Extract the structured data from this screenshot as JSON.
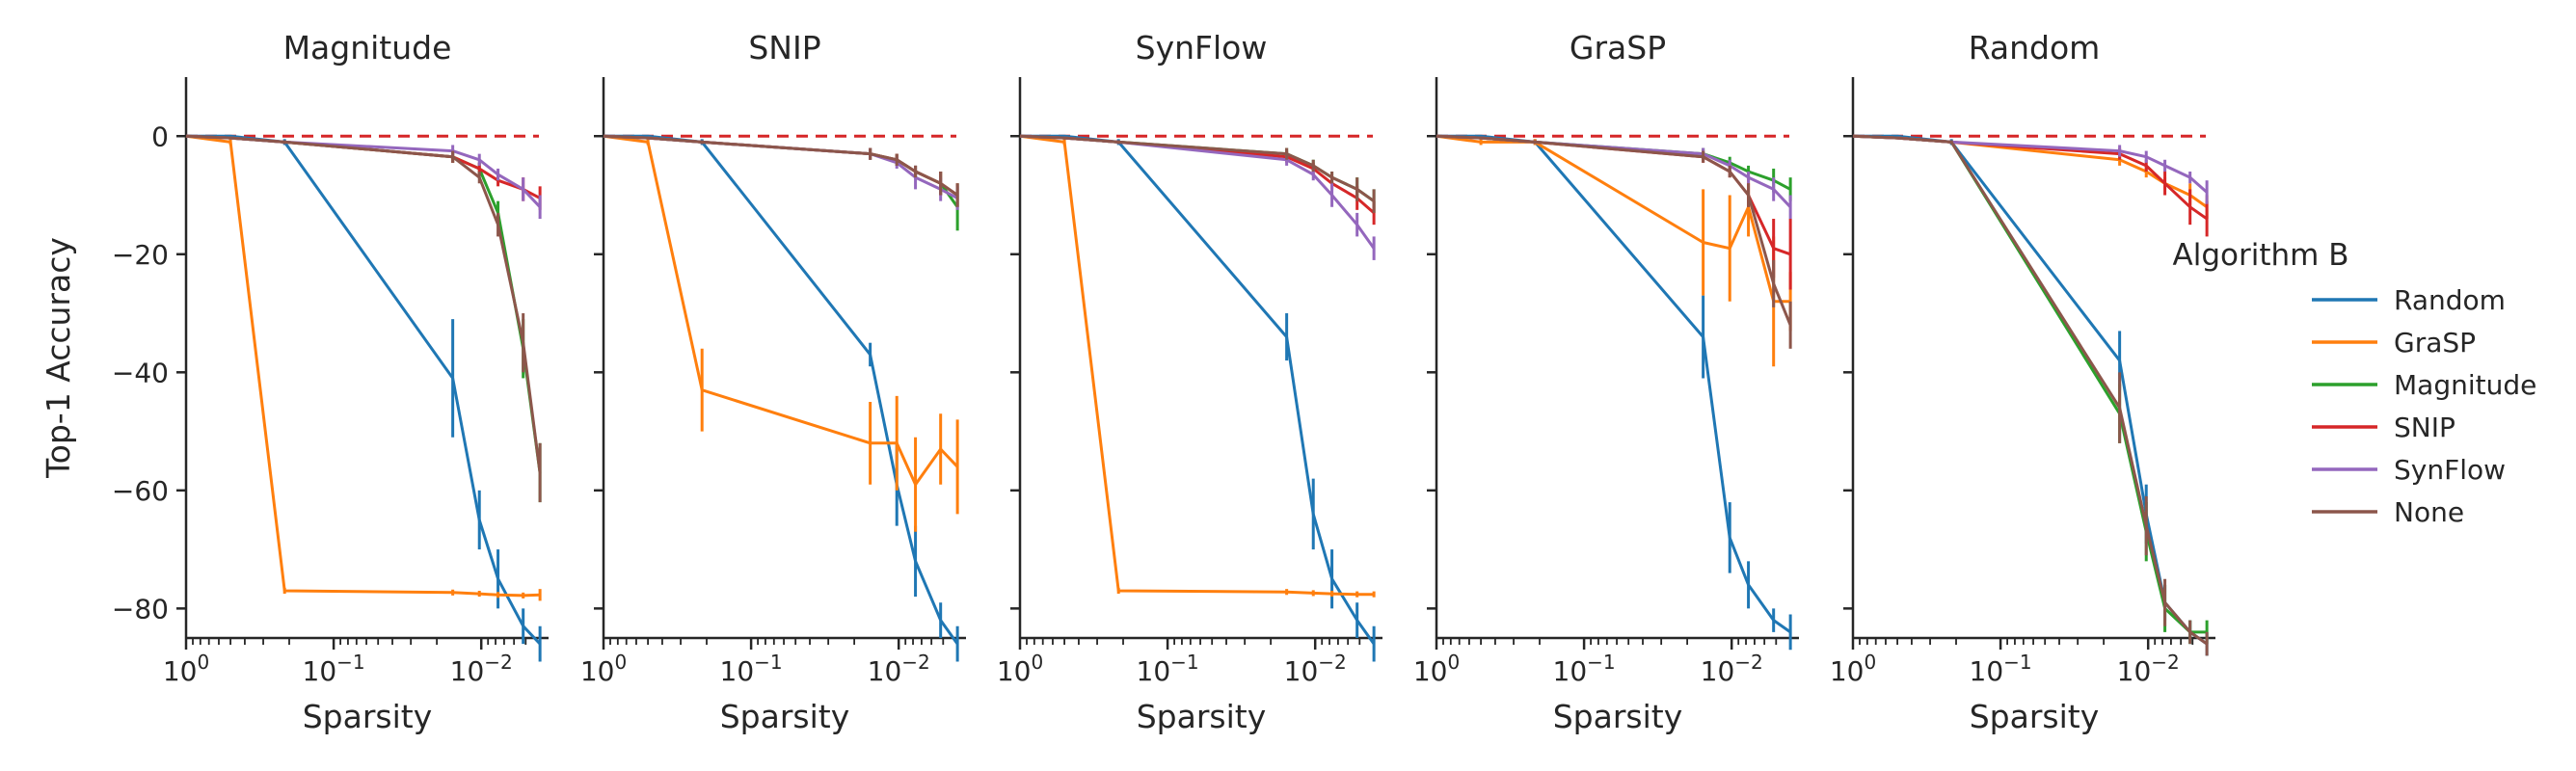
{
  "chart_data": {
    "type": "line",
    "ylabel": "Top-1 Accuracy",
    "xlabel": "Sparsity",
    "x_scale": "log-reversed",
    "xlim": [
      1,
      0.0035
    ],
    "ylim": [
      -85,
      10
    ],
    "yticks": [
      0,
      -20,
      -40,
      -60,
      -80
    ],
    "ytick_labels": [
      "0",
      "−20",
      "−40",
      "−60",
      "−80"
    ],
    "xticks": [
      1,
      0.1,
      0.01
    ],
    "xtick_labels": [
      "10",
      "10",
      "10"
    ],
    "xtick_exponents": [
      "0",
      "−1",
      "−2"
    ],
    "baseline": {
      "y": 0,
      "color": "#d62728",
      "style": "dashed"
    },
    "x": [
      1.0,
      0.5,
      0.215,
      0.0156,
      0.0103,
      0.0077,
      0.0052,
      0.004
    ],
    "legend": {
      "title": "Algorithm B",
      "placement": "center-right",
      "entries": [
        {
          "name": "Random",
          "color": "#1f77b4"
        },
        {
          "name": "GraSP",
          "color": "#ff7f0e"
        },
        {
          "name": "Magnitude",
          "color": "#2ca02c"
        },
        {
          "name": "SNIP",
          "color": "#d62728"
        },
        {
          "name": "SynFlow",
          "color": "#9467bd"
        },
        {
          "name": "None",
          "color": "#8c564b"
        }
      ]
    },
    "panels": [
      {
        "title": "Magnitude",
        "series": [
          {
            "name": "Random",
            "values": [
              0,
              0,
              -1,
              -41,
              -65,
              -75,
              -83,
              -86
            ],
            "errors": [
              0,
              0,
              0.5,
              10,
              5,
              5,
              3,
              3
            ]
          },
          {
            "name": "GraSP",
            "values": [
              0,
              -1,
              -77,
              -77.3,
              -77.5,
              -77.7,
              -77.8,
              -77.7
            ],
            "errors": [
              0,
              0.5,
              0.5,
              0.5,
              0.5,
              0.5,
              0.5,
              1
            ]
          },
          {
            "name": "Magnitude",
            "values": [
              0,
              -0.3,
              -1,
              -3.5,
              -5.5,
              -13,
              -36,
              -57
            ],
            "errors": [
              0,
              0.2,
              0.3,
              1,
              1,
              2,
              5,
              5
            ]
          },
          {
            "name": "SNIP",
            "values": [
              0,
              -0.3,
              -1,
              -3.5,
              -5.5,
              -7.5,
              -9,
              -10.5
            ],
            "errors": [
              0,
              0.2,
              0.3,
              1,
              1,
              1,
              2,
              2
            ]
          },
          {
            "name": "SynFlow",
            "values": [
              0,
              -0.3,
              -1,
              -2.5,
              -4,
              -6.5,
              -9,
              -12
            ],
            "errors": [
              0,
              0.2,
              0.3,
              1,
              1,
              1,
              2,
              2
            ]
          },
          {
            "name": "None",
            "values": [
              0,
              -0.3,
              -1,
              -3.5,
              -7,
              -15,
              -35,
              -57
            ],
            "errors": [
              0,
              0.2,
              0.3,
              1,
              1,
              2,
              5,
              5
            ]
          }
        ]
      },
      {
        "title": "SNIP",
        "series": [
          {
            "name": "Random",
            "values": [
              0,
              0,
              -1,
              -37,
              -59,
              -72,
              -82,
              -86
            ],
            "errors": [
              0,
              0,
              0.5,
              2,
              7,
              6,
              3,
              3
            ]
          },
          {
            "name": "GraSP",
            "values": [
              0,
              -1,
              -43,
              -52,
              -52,
              -59,
              -53,
              -56
            ],
            "errors": [
              0,
              0.5,
              7,
              7,
              8,
              8,
              6,
              8
            ]
          },
          {
            "name": "Magnitude",
            "values": [
              0,
              -0.3,
              -1,
              -3,
              -4,
              -6,
              -8,
              -12
            ],
            "errors": [
              0,
              0.2,
              0.3,
              1,
              1,
              1,
              2,
              4
            ]
          },
          {
            "name": "SNIP",
            "values": [
              0,
              -0.3,
              -1,
              -3,
              -4,
              -6,
              -8,
              -10
            ],
            "errors": [
              0,
              0.2,
              0.3,
              1,
              1,
              1,
              2,
              2
            ]
          },
          {
            "name": "SynFlow",
            "values": [
              0,
              -0.3,
              -1,
              -3,
              -4.5,
              -7,
              -9,
              -10.5
            ],
            "errors": [
              0,
              0.2,
              0.3,
              1,
              1,
              2,
              2,
              2
            ]
          },
          {
            "name": "None",
            "values": [
              0,
              -0.3,
              -1,
              -3,
              -4,
              -6,
              -8,
              -10
            ],
            "errors": [
              0,
              0.2,
              0.3,
              1,
              1,
              1,
              2,
              2
            ]
          }
        ]
      },
      {
        "title": "SynFlow",
        "series": [
          {
            "name": "Random",
            "values": [
              0,
              0,
              -1,
              -34,
              -64,
              -75,
              -82,
              -86
            ],
            "errors": [
              0,
              0,
              0.5,
              4,
              6,
              5,
              3,
              3
            ]
          },
          {
            "name": "GraSP",
            "values": [
              0,
              -1,
              -77,
              -77.2,
              -77.4,
              -77.5,
              -77.6,
              -77.6
            ],
            "errors": [
              0,
              0.5,
              0.5,
              0.5,
              0.5,
              0.5,
              0.5,
              0.5
            ]
          },
          {
            "name": "Magnitude",
            "values": [
              0,
              -0.3,
              -1,
              -3,
              -5,
              -7,
              -9,
              -11
            ],
            "errors": [
              0,
              0.2,
              0.3,
              1,
              1,
              1,
              2,
              2
            ]
          },
          {
            "name": "SNIP",
            "values": [
              0,
              -0.3,
              -1,
              -3.5,
              -5.5,
              -8,
              -10.5,
              -13
            ],
            "errors": [
              0,
              0.2,
              0.3,
              1,
              1,
              1,
              2,
              2
            ]
          },
          {
            "name": "SynFlow",
            "values": [
              0,
              -0.3,
              -1,
              -4,
              -6.5,
              -10,
              -15,
              -19
            ],
            "errors": [
              0,
              0.2,
              0.3,
              1,
              1,
              2,
              2,
              2
            ]
          },
          {
            "name": "None",
            "values": [
              0,
              -0.3,
              -1,
              -3,
              -5,
              -7,
              -9,
              -11
            ],
            "errors": [
              0,
              0.2,
              0.3,
              1,
              1,
              1,
              2,
              2
            ]
          }
        ]
      },
      {
        "title": "GraSP",
        "series": [
          {
            "name": "Random",
            "values": [
              0,
              0,
              -1,
              -34,
              -68,
              -76,
              -82,
              -84
            ],
            "errors": [
              0,
              0,
              0.5,
              7,
              6,
              4,
              2,
              3
            ]
          },
          {
            "name": "GraSP",
            "values": [
              0,
              -1,
              -1,
              -18,
              -19,
              -12,
              -28,
              -28
            ],
            "errors": [
              0,
              0.5,
              0.5,
              9,
              9,
              5,
              11,
              5
            ]
          },
          {
            "name": "Magnitude",
            "values": [
              0,
              -0.3,
              -1,
              -3,
              -4.5,
              -6,
              -7.5,
              -9
            ],
            "errors": [
              0,
              0.2,
              0.3,
              1,
              1,
              1,
              2,
              2
            ]
          },
          {
            "name": "SNIP",
            "values": [
              0,
              -0.3,
              -1,
              -3.5,
              -6,
              -10,
              -19,
              -20
            ],
            "errors": [
              0,
              0.2,
              0.3,
              1,
              1,
              2,
              5,
              6
            ]
          },
          {
            "name": "SynFlow",
            "values": [
              0,
              -0.3,
              -1,
              -3,
              -5,
              -7,
              -9,
              -12
            ],
            "errors": [
              0,
              0.2,
              0.3,
              1,
              1,
              1,
              2,
              2
            ]
          },
          {
            "name": "None",
            "values": [
              0,
              -0.3,
              -1,
              -3.5,
              -6,
              -10,
              -25,
              -32
            ],
            "errors": [
              0,
              0.2,
              0.3,
              1,
              1,
              2,
              4,
              4
            ]
          }
        ]
      },
      {
        "title": "Random",
        "series": [
          {
            "name": "Random",
            "values": [
              0,
              0,
              -1,
              -38,
              -64,
              -79,
              -84,
              -86
            ],
            "errors": [
              0,
              0,
              0.5,
              5,
              5,
              3,
              2,
              2
            ]
          },
          {
            "name": "GraSP",
            "values": [
              0,
              -0.3,
              -1,
              -4,
              -6,
              -8,
              -10,
              -12
            ],
            "errors": [
              0,
              0.2,
              0.3,
              1,
              1,
              1,
              2,
              2
            ]
          },
          {
            "name": "Magnitude",
            "values": [
              0,
              -0.3,
              -1,
              -47,
              -67,
              -80,
              -84,
              -84
            ],
            "errors": [
              0,
              0.2,
              0.3,
              5,
              5,
              4,
              2,
              2
            ]
          },
          {
            "name": "SNIP",
            "values": [
              0,
              -0.3,
              -1,
              -3,
              -5,
              -8,
              -12,
              -14
            ],
            "errors": [
              0,
              0.2,
              0.3,
              1,
              1,
              2,
              3,
              3
            ]
          },
          {
            "name": "SynFlow",
            "values": [
              0,
              -0.3,
              -1,
              -2.5,
              -3.5,
              -5,
              -7,
              -9.5
            ],
            "errors": [
              0,
              0.2,
              0.3,
              1,
              1,
              1,
              1,
              2
            ]
          },
          {
            "name": "None",
            "values": [
              0,
              -0.3,
              -1,
              -46,
              -66,
              -79,
              -84,
              -86
            ],
            "errors": [
              0,
              0.2,
              0.3,
              6,
              5,
              4,
              2,
              2
            ]
          }
        ]
      }
    ]
  }
}
